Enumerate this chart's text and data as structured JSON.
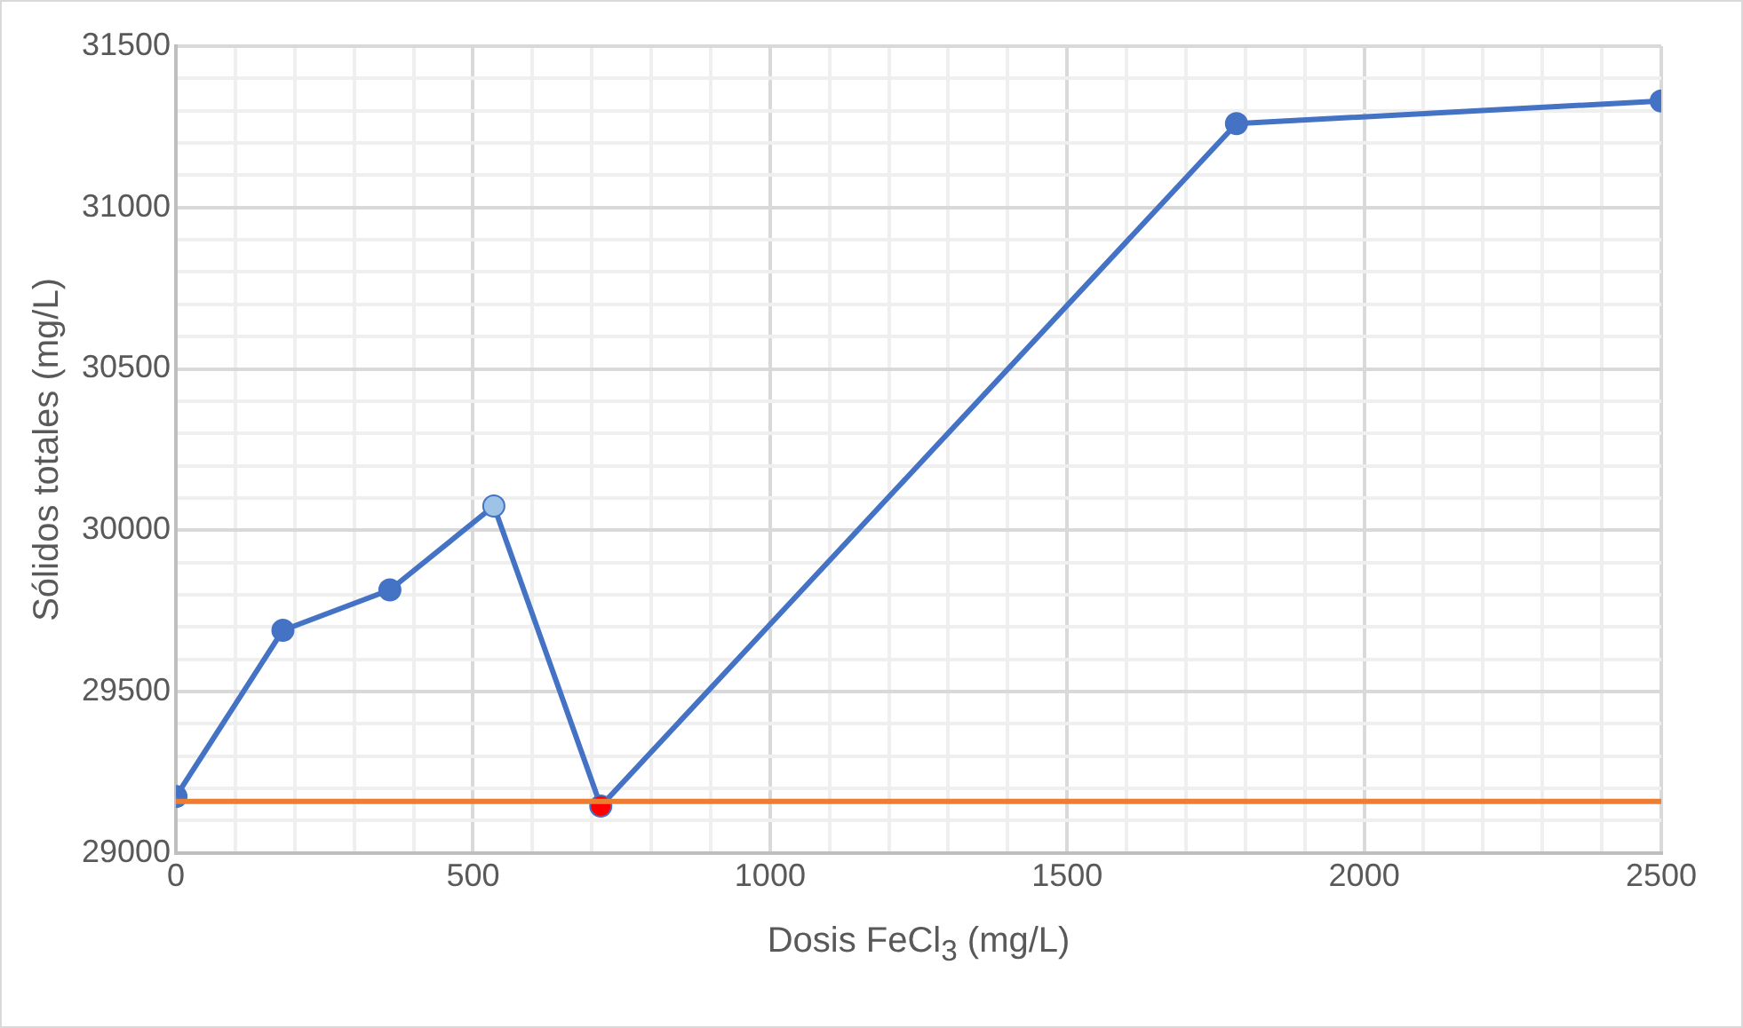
{
  "chart_data": {
    "type": "line",
    "xlabel": "Dosis FeCl$_{3}$ (mg/L)",
    "ylabel": "Sólidos totales (mg/L)",
    "x": [
      0,
      180,
      360,
      535,
      715,
      1785,
      2500
    ],
    "series": [
      {
        "color": "#4472c4",
        "colors": [
          "#4472c4",
          "#4472c4",
          "#4472c4",
          "#9dc3e6",
          "#ff0000",
          "#4472c4",
          "#4472c4"
        ],
        "values": [
          29175,
          29690,
          29815,
          30075,
          29145,
          31260,
          31330
        ]
      }
    ],
    "ref_lines": [
      {
        "axis": "y",
        "value": 29160,
        "color": "#ed7d31"
      }
    ],
    "xlim": [
      0,
      2500
    ],
    "xticks": [
      0,
      {
        "value": 100,
        "label": null
      },
      {
        "value": 200,
        "label": null
      },
      {
        "value": 300,
        "label": null
      },
      {
        "value": 400,
        "label": null
      },
      500,
      {
        "value": 600,
        "label": null
      },
      {
        "value": 700,
        "label": null
      },
      {
        "value": 800,
        "label": null
      },
      {
        "value": 900,
        "label": null
      },
      1000,
      {
        "value": 1100,
        "label": null
      },
      {
        "value": 1200,
        "label": null
      },
      {
        "value": 1300,
        "label": null
      },
      {
        "value": 1400,
        "label": null
      },
      1500,
      {
        "value": 1600,
        "label": null
      },
      {
        "value": 1700,
        "label": null
      },
      {
        "value": 1800,
        "label": null
      },
      {
        "value": 1900,
        "label": null
      },
      2000,
      {
        "value": 2100,
        "label": null
      },
      {
        "value": 2200,
        "label": null
      },
      {
        "value": 2300,
        "label": null
      },
      {
        "value": 2400,
        "label": null
      },
      2500
    ],
    "ylim": [
      29000,
      31500
    ],
    "yticks": [
      29000,
      {
        "value": 29100,
        "label": null
      },
      {
        "value": 29200,
        "label": null
      },
      {
        "value": 29300,
        "label": null
      },
      {
        "value": 29400,
        "label": null
      },
      29500,
      {
        "value": 29600,
        "label": null
      },
      {
        "value": 29700,
        "label": null
      },
      {
        "value": 29800,
        "label": null
      },
      {
        "value": 29900,
        "label": null
      },
      30000,
      {
        "value": 30100,
        "label": null
      },
      {
        "value": 30200,
        "label": null
      },
      {
        "value": 30300,
        "label": null
      },
      {
        "value": 30400,
        "label": null
      },
      30500,
      {
        "value": 30600,
        "label": null
      },
      {
        "value": 30700,
        "label": null
      },
      {
        "value": 30800,
        "label": null
      },
      {
        "value": 30900,
        "label": null
      },
      31000,
      {
        "value": 31100,
        "label": null
      },
      {
        "value": 31200,
        "label": null
      },
      {
        "value": 31300,
        "label": null
      },
      {
        "value": 31400,
        "label": null
      },
      31500
    ],
    "grid": true,
    "legend": false,
    "marker": "circle",
    "line_style": "solid"
  }
}
